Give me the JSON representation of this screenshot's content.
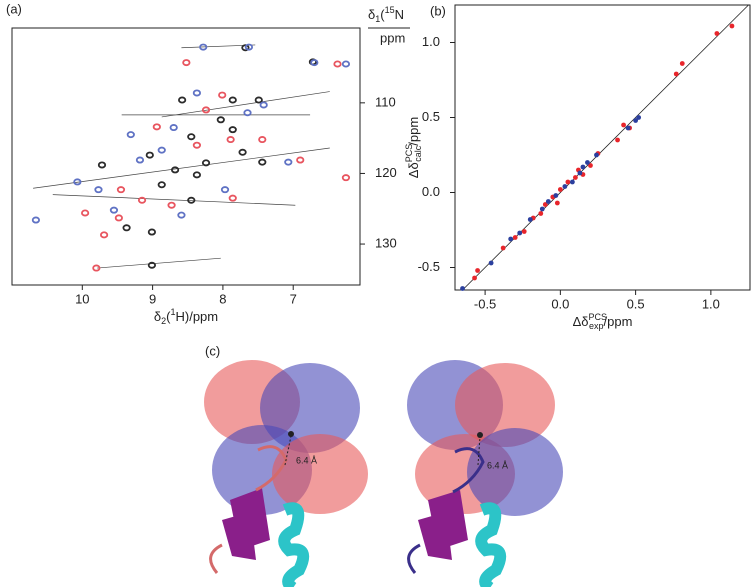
{
  "panels": [
    "(a)",
    "(b)",
    "(c)"
  ],
  "chart_data": [
    {
      "type": "scatter",
      "marker": "ring",
      "xlabel": {
        "base": "δ",
        "sub": "2",
        "paren": "(",
        "sup": "1",
        "tail": "H)/ppm"
      },
      "ylabel": {
        "base": "δ",
        "sub": "1",
        "paren": "(",
        "sup": "15",
        "tail": "N",
        "unit": "ppm"
      },
      "xlim": [
        11,
        6.05
      ],
      "ylim": [
        135.8,
        99.4
      ],
      "xticks": [
        10,
        9,
        8,
        7
      ],
      "yticks": [
        110,
        120,
        130
      ],
      "series": [
        {
          "color": "#2b2b2b",
          "x": [
            7.68,
            6.72,
            7.86,
            7.49,
            8.58,
            8.03,
            8.45,
            7.72,
            9.04,
            7.44,
            8.68,
            8.37,
            8.87,
            8.45,
            9.01,
            9.37,
            9.01,
            7.86,
            8.24,
            9.72
          ],
          "y": [
            102.2,
            104.2,
            109.6,
            109.6,
            109.6,
            112.4,
            114.8,
            117.0,
            117.4,
            118.4,
            119.5,
            120.2,
            121.6,
            123.8,
            128.3,
            127.7,
            133.0,
            113.8,
            118.5,
            118.8
          ]
        },
        {
          "color": "#5f72c4",
          "x": [
            8.28,
            7.63,
            6.25,
            6.7,
            8.37,
            7.65,
            8.7,
            7.07,
            9.18,
            10.07,
            10.66,
            9.55,
            7.97,
            8.87,
            7.42,
            9.31,
            9.77,
            8.59
          ],
          "y": [
            102.1,
            102.1,
            104.5,
            104.3,
            108.6,
            111.4,
            113.5,
            118.4,
            118.1,
            121.2,
            126.6,
            125.2,
            122.3,
            116.7,
            110.3,
            114.5,
            122.3,
            125.9
          ]
        },
        {
          "color": "#e8555f",
          "x": [
            8.52,
            6.37,
            8.01,
            7.44,
            8.37,
            9.8,
            9.45,
            8.73,
            7.86,
            6.9,
            6.25,
            9.69,
            8.24,
            8.94,
            9.15,
            7.89,
            9.48,
            9.96
          ],
          "y": [
            104.3,
            104.5,
            108.9,
            115.2,
            116.0,
            133.4,
            122.3,
            124.5,
            123.5,
            118.1,
            120.6,
            128.7,
            111.0,
            113.4,
            123.8,
            115.2,
            126.3,
            125.6
          ]
        }
      ],
      "connectors": [
        {
          "x": [
            8.59,
            7.54
          ],
          "y": [
            102.2,
            101.8
          ]
        },
        {
          "x": [
            8.87,
            6.48
          ],
          "y": [
            112.0,
            108.4
          ]
        },
        {
          "x": [
            9.44,
            6.76
          ],
          "y": [
            111.7,
            111.7
          ]
        },
        {
          "x": [
            10.7,
            6.48
          ],
          "y": [
            122.1,
            116.4
          ]
        },
        {
          "x": [
            10.42,
            6.97
          ],
          "y": [
            123.0,
            124.5
          ]
        },
        {
          "x": [
            9.79,
            8.03
          ],
          "y": [
            133.4,
            132.0
          ]
        }
      ]
    },
    {
      "type": "scatter",
      "marker": "dot",
      "diagonal": true,
      "xlabel": {
        "base": "Δδ",
        "sup": "PCS",
        "sub": "exp",
        "tail": "/ppm"
      },
      "ylabel": {
        "base": "Δδ",
        "sup": "PCS",
        "sub": "calc",
        "tail": "/ppm"
      },
      "xlim": [
        -0.7,
        1.26
      ],
      "ylim": [
        -0.65,
        1.25
      ],
      "xticks": [
        -0.5,
        {
          "value": 0,
          "label": "0.0"
        },
        0.5,
        {
          "value": 1,
          "label": "1.0"
        }
      ],
      "yticks": [
        -0.5,
        {
          "value": 0,
          "label": "0.0"
        },
        0.5,
        {
          "value": 1,
          "label": "1.0"
        }
      ],
      "series": [
        {
          "color": "#e8252b",
          "x": [
            1.14,
            1.04,
            0.81,
            0.77,
            0.46,
            0.42,
            0.38,
            0.25,
            0.2,
            0.15,
            0.1,
            0.05,
            0.0,
            -0.05,
            -0.1,
            -0.13,
            -0.18,
            -0.24,
            -0.3,
            -0.38,
            -0.55,
            -0.57,
            0.12,
            -0.02
          ],
          "y": [
            1.11,
            1.06,
            0.86,
            0.79,
            0.43,
            0.45,
            0.35,
            0.26,
            0.18,
            0.12,
            0.1,
            0.07,
            0.02,
            -0.03,
            -0.08,
            -0.14,
            -0.17,
            -0.26,
            -0.3,
            -0.37,
            -0.52,
            -0.57,
            0.15,
            -0.07
          ]
        },
        {
          "color": "#2b3f9e",
          "x": [
            0.52,
            0.5,
            0.45,
            0.24,
            0.18,
            0.13,
            0.08,
            0.03,
            -0.03,
            -0.08,
            -0.12,
            -0.2,
            -0.27,
            -0.33,
            -0.46,
            -0.65,
            0.15
          ],
          "y": [
            0.5,
            0.48,
            0.43,
            0.25,
            0.2,
            0.13,
            0.07,
            0.04,
            -0.02,
            -0.06,
            -0.11,
            -0.18,
            -0.27,
            -0.31,
            -0.47,
            -0.64,
            0.17
          ]
        }
      ]
    }
  ],
  "structure_labels": [
    "6.4 Å",
    "6.4 Å"
  ]
}
